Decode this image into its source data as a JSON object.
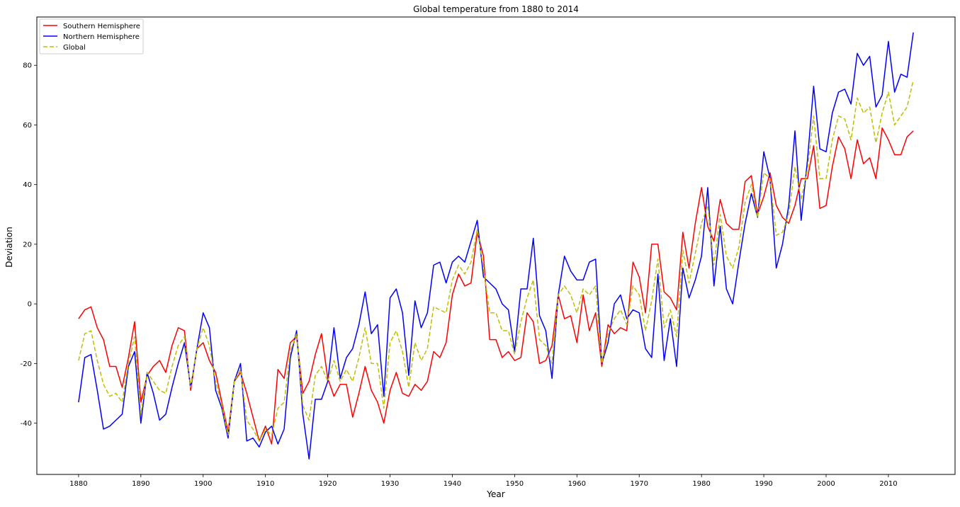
{
  "chart_data": {
    "type": "line",
    "title": "Global temperature from 1880 to 2014",
    "xlabel": "Year",
    "ylabel": "Deviation",
    "xlim": [
      1873.3,
      2020.7
    ],
    "ylim": [
      -57.2,
      96.2
    ],
    "xticks": [
      1880,
      1890,
      1900,
      1910,
      1920,
      1930,
      1940,
      1950,
      1960,
      1970,
      1980,
      1990,
      2000,
      2010
    ],
    "yticks": [
      -40,
      -20,
      0,
      20,
      40,
      60,
      80
    ],
    "grid": false,
    "legend_position": "top-left",
    "x_start": 1880,
    "series": [
      {
        "name": "Southern Hemisphere",
        "color": "#ff0000",
        "dash": "solid",
        "values": [
          -5,
          -2,
          -1,
          -8,
          -12,
          -21,
          -21,
          -28,
          -18,
          -6,
          -33,
          -24,
          -21,
          -19,
          -23,
          -14,
          -8,
          -9,
          -29,
          -15,
          -13,
          -19,
          -23,
          -33,
          -43,
          -26,
          -23,
          -30,
          -38,
          -46,
          -41,
          -47,
          -22,
          -25,
          -13,
          -11,
          -30,
          -26,
          -17,
          -10,
          -25,
          -31,
          -27,
          -27,
          -38,
          -30,
          -21,
          -29,
          -33,
          -40,
          -29,
          -23,
          -30,
          -31,
          -27,
          -29,
          -26,
          -16,
          -18,
          -13,
          3,
          10,
          6,
          7,
          24,
          16,
          -12,
          -12,
          -18,
          -16,
          -19,
          -18,
          -3,
          -6,
          -20,
          -19,
          -14,
          3,
          -5,
          -4,
          -13,
          3,
          -9,
          -3,
          -21,
          -7,
          -10,
          -8,
          -9,
          14,
          9,
          -3,
          20,
          20,
          4,
          2,
          -2,
          24,
          12,
          27,
          39,
          26,
          21,
          35,
          27,
          25,
          25,
          41,
          43,
          30,
          36,
          44,
          33,
          29,
          27,
          33,
          42,
          42,
          53,
          32,
          33,
          46,
          56,
          52,
          42,
          55,
          47,
          49,
          42,
          59,
          55,
          50,
          50,
          56,
          58
        ]
      },
      {
        "name": "Northern Hemisphere",
        "color": "#0000ff",
        "dash": "solid",
        "values": [
          -33,
          -18,
          -17,
          -29,
          -42,
          -41,
          -39,
          -37,
          -21,
          -16,
          -40,
          -23,
          -30,
          -39,
          -37,
          -28,
          -20,
          -13,
          -28,
          -15,
          -3,
          -8,
          -29,
          -35,
          -45,
          -26,
          -20,
          -46,
          -45,
          -48,
          -43,
          -41,
          -47,
          -42,
          -18,
          -9,
          -37,
          -52,
          -32,
          -32,
          -26,
          -8,
          -25,
          -18,
          -15,
          -7,
          4,
          -10,
          -7,
          -31,
          2,
          5,
          -3,
          -24,
          1,
          -8,
          -3,
          13,
          14,
          7,
          14,
          16,
          14,
          21,
          28,
          9,
          7,
          5,
          0,
          -2,
          -16,
          5,
          5,
          22,
          -4,
          -9,
          -25,
          3,
          16,
          11,
          8,
          8,
          14,
          15,
          -20,
          -13,
          0,
          3,
          -5,
          -2,
          -3,
          -15,
          -18,
          10,
          -19,
          -5,
          -21,
          12,
          2,
          8,
          16,
          39,
          6,
          26,
          5,
          0,
          14,
          27,
          37,
          29,
          51,
          42,
          12,
          20,
          33,
          58,
          28,
          48,
          73,
          52,
          51,
          64,
          71,
          72,
          67,
          84,
          80,
          83,
          66,
          70,
          88,
          71,
          77,
          76,
          91
        ]
      },
      {
        "name": "Global",
        "color": "#bfbf00",
        "dash": "dashed",
        "values": [
          -19,
          -10,
          -9,
          -19,
          -27,
          -31,
          -30,
          -33,
          -20,
          -11,
          -37,
          -23,
          -26,
          -29,
          -30,
          -21,
          -14,
          -11,
          -28,
          -15,
          -8,
          -14,
          -26,
          -34,
          -44,
          -26,
          -22,
          -39,
          -42,
          -46,
          -42,
          -44,
          -35,
          -33,
          -16,
          -10,
          -34,
          -39,
          -24,
          -21,
          -26,
          -19,
          -26,
          -22,
          -26,
          -18,
          -8,
          -20,
          -20,
          -35,
          -13,
          -9,
          -16,
          -28,
          -13,
          -19,
          -15,
          -1,
          -2,
          -3,
          8,
          13,
          10,
          14,
          25,
          12,
          -3,
          -3,
          -9,
          -9,
          -17,
          -6,
          2,
          8,
          -12,
          -14,
          -20,
          3,
          6,
          3,
          -3,
          5,
          3,
          6,
          -20,
          -10,
          -5,
          -2,
          -7,
          6,
          3,
          -9,
          1,
          15,
          -8,
          -2,
          -11,
          18,
          7,
          17,
          27,
          33,
          13,
          30,
          16,
          12,
          19,
          34,
          40,
          29,
          44,
          42,
          23,
          24,
          30,
          46,
          35,
          45,
          63,
          42,
          42,
          55,
          63,
          62,
          55,
          69,
          64,
          66,
          54,
          64,
          71,
          60,
          63,
          66,
          75
        ]
      }
    ]
  }
}
